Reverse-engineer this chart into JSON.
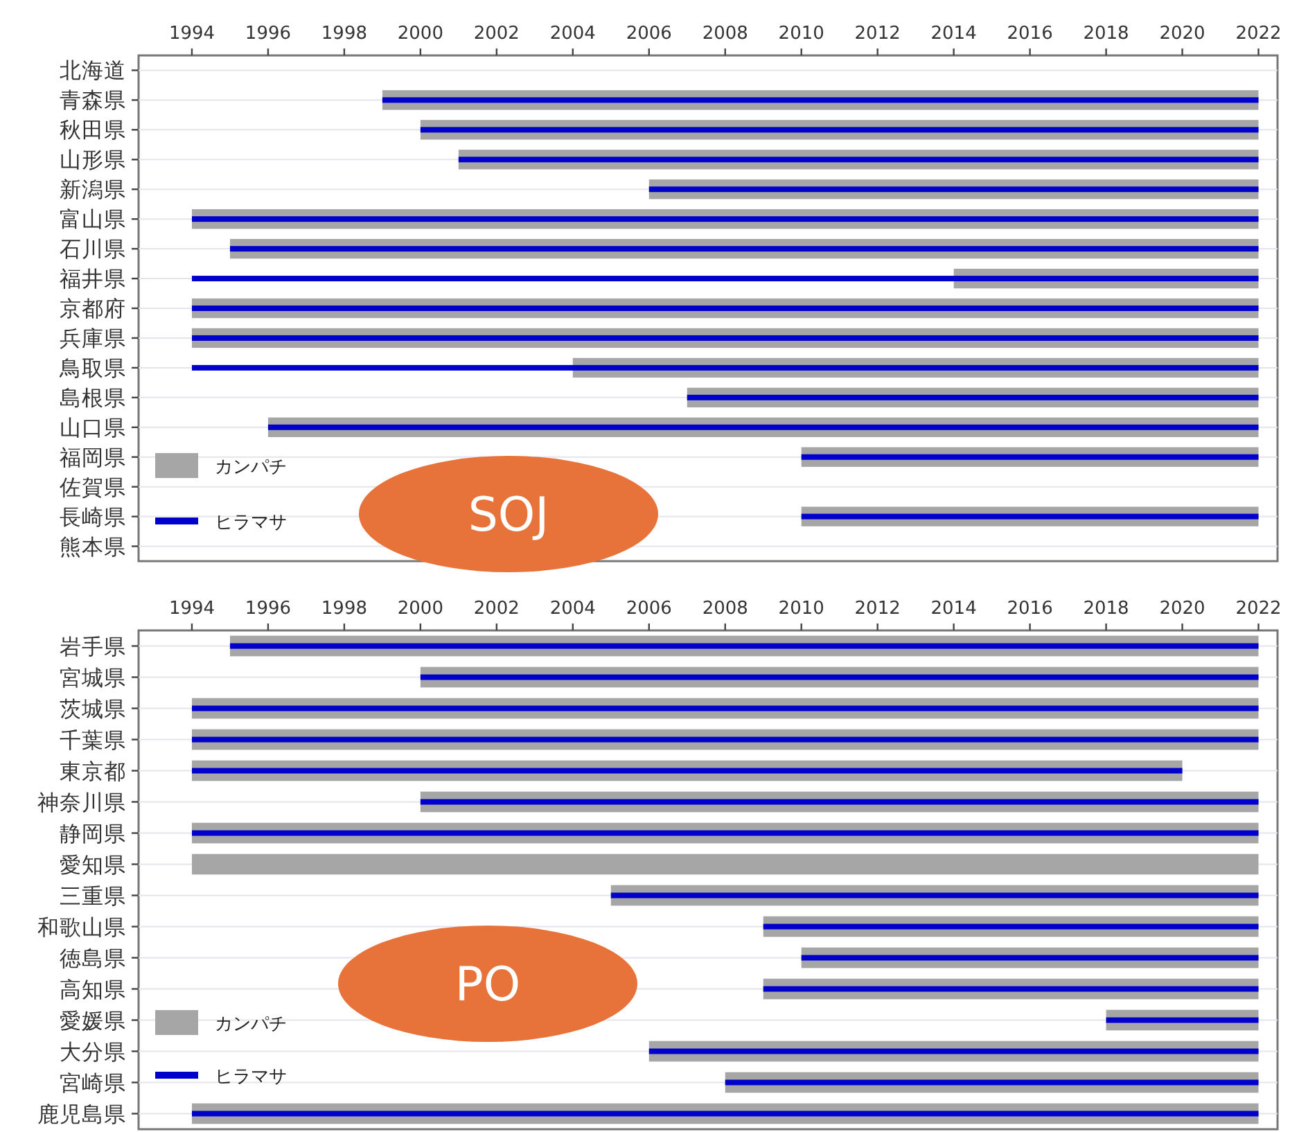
{
  "chart_data": [
    {
      "type": "bar",
      "orientation": "horizontal",
      "categories": [
        "北海道",
        "青森県",
        "秋田県",
        "山形県",
        "新潟県",
        "富山県",
        "石川県",
        "福井県",
        "京都府",
        "兵庫県",
        "鳥取県",
        "島根県",
        "山口県",
        "福岡県",
        "佐賀県",
        "長崎県",
        "熊本県"
      ],
      "series": [
        {
          "name": "カンパチ",
          "color": "#a6a6a6",
          "base": [
            null,
            1999,
            2000,
            2001,
            2006,
            1994,
            1995,
            2014,
            1994,
            1994,
            2004,
            2007,
            1996,
            2010,
            null,
            2010,
            null
          ],
          "values": [
            null,
            23,
            22,
            21,
            16,
            28,
            27,
            8,
            28,
            28,
            18,
            15,
            26,
            12,
            null,
            12,
            null
          ]
        },
        {
          "name": "ヒラマサ",
          "color": "#0000cc",
          "base": [
            null,
            1999,
            2000,
            2001,
            2006,
            1994,
            1995,
            1994,
            1994,
            1994,
            1994,
            2007,
            1996,
            2010,
            null,
            2010,
            null
          ],
          "values": [
            null,
            23,
            22,
            21,
            16,
            28,
            27,
            28,
            28,
            28,
            28,
            15,
            26,
            12,
            null,
            12,
            null
          ]
        }
      ],
      "xlim": [
        1992.6,
        2022.5
      ],
      "xticks": [
        1994,
        1996,
        1998,
        2000,
        2002,
        2004,
        2006,
        2008,
        2010,
        2012,
        2014,
        2016,
        2018,
        2020,
        2022
      ],
      "grid": "y",
      "legend": "bottom left",
      "annotations": [
        "SOJ"
      ]
    },
    {
      "type": "bar",
      "orientation": "horizontal",
      "categories": [
        "岩手県",
        "宮城県",
        "茨城県",
        "千葉県",
        "東京都",
        "神奈川県",
        "静岡県",
        "愛知県",
        "三重県",
        "和歌山県",
        "徳島県",
        "高知県",
        "愛媛県",
        "大分県",
        "宮崎県",
        "鹿児島県"
      ],
      "series": [
        {
          "name": "カンパチ",
          "color": "#a6a6a6",
          "base": [
            1995,
            2000,
            1994,
            1994,
            1994,
            2000,
            1994,
            1994,
            2005,
            2009,
            2010,
            2009,
            2018,
            2006,
            2008,
            1994
          ],
          "values": [
            27,
            22,
            28,
            28,
            26,
            22,
            28,
            28,
            17,
            13,
            12,
            13,
            4,
            16,
            14,
            28
          ]
        },
        {
          "name": "ヒラマサ",
          "color": "#0000cc",
          "base": [
            1995,
            2000,
            1994,
            1994,
            1994,
            2000,
            1994,
            null,
            2005,
            2009,
            2010,
            2009,
            2018,
            2006,
            2008,
            1994
          ],
          "values": [
            27,
            22,
            28,
            28,
            26,
            22,
            28,
            null,
            17,
            13,
            12,
            13,
            4,
            16,
            14,
            28
          ]
        }
      ],
      "xlim": [
        1992.6,
        2022.5
      ],
      "xticks": [
        1994,
        1996,
        1998,
        2000,
        2002,
        2004,
        2006,
        2008,
        2010,
        2012,
        2014,
        2016,
        2018,
        2020,
        2022
      ],
      "grid": "y",
      "legend": "bottom left",
      "annotations": [
        "PO"
      ]
    }
  ]
}
